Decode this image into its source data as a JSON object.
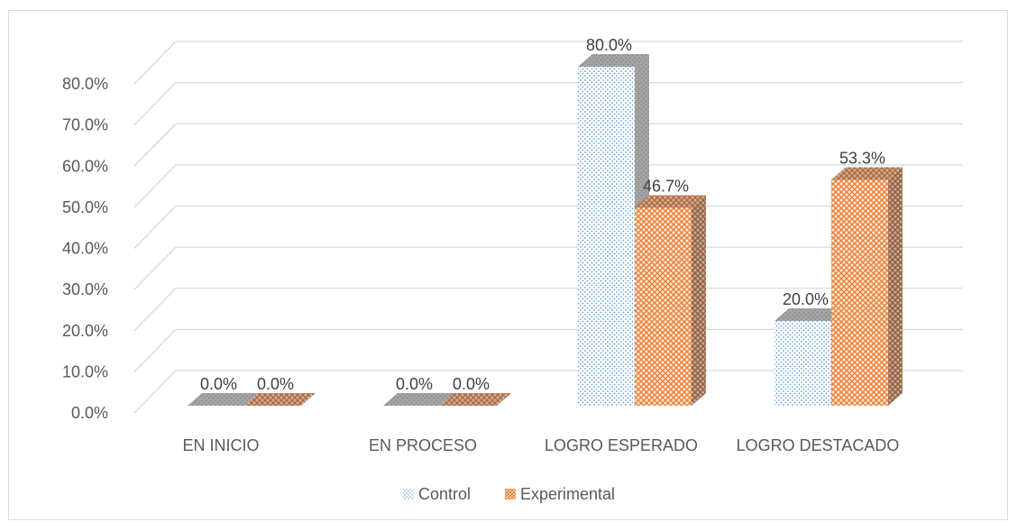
{
  "chart_data": {
    "type": "bar",
    "categories": [
      "EN INICIO",
      "EN PROCESO",
      "LOGRO ESPERADO",
      "LOGRO DESTACADO"
    ],
    "series": [
      {
        "name": "Control",
        "values": [
          0.0,
          0.0,
          80.0,
          20.0
        ],
        "labels": [
          "0.0%",
          "0.0%",
          "80.0%",
          "20.0%"
        ],
        "pattern": "dots",
        "color": "#5b9bd5"
      },
      {
        "name": "Experimental",
        "values": [
          0.0,
          0.0,
          46.7,
          53.3
        ],
        "labels": [
          "0.0%",
          "0.0%",
          "46.7%",
          "53.3%"
        ],
        "pattern": "crosshatch",
        "color": "#ed7d31"
      }
    ],
    "y_ticks": [
      "0.0%",
      "10.0%",
      "20.0%",
      "30.0%",
      "40.0%",
      "50.0%",
      "60.0%",
      "70.0%",
      "80.0%"
    ],
    "ylim": [
      0,
      80
    ],
    "grid": true,
    "three_d": true,
    "legend_position": "bottom",
    "colors": {
      "grid": "#d9d9d9",
      "text": "#595959",
      "top_face": "#a5a5a5",
      "control_side": "#a5a5a5",
      "experimental_side": "#a0785a"
    }
  }
}
